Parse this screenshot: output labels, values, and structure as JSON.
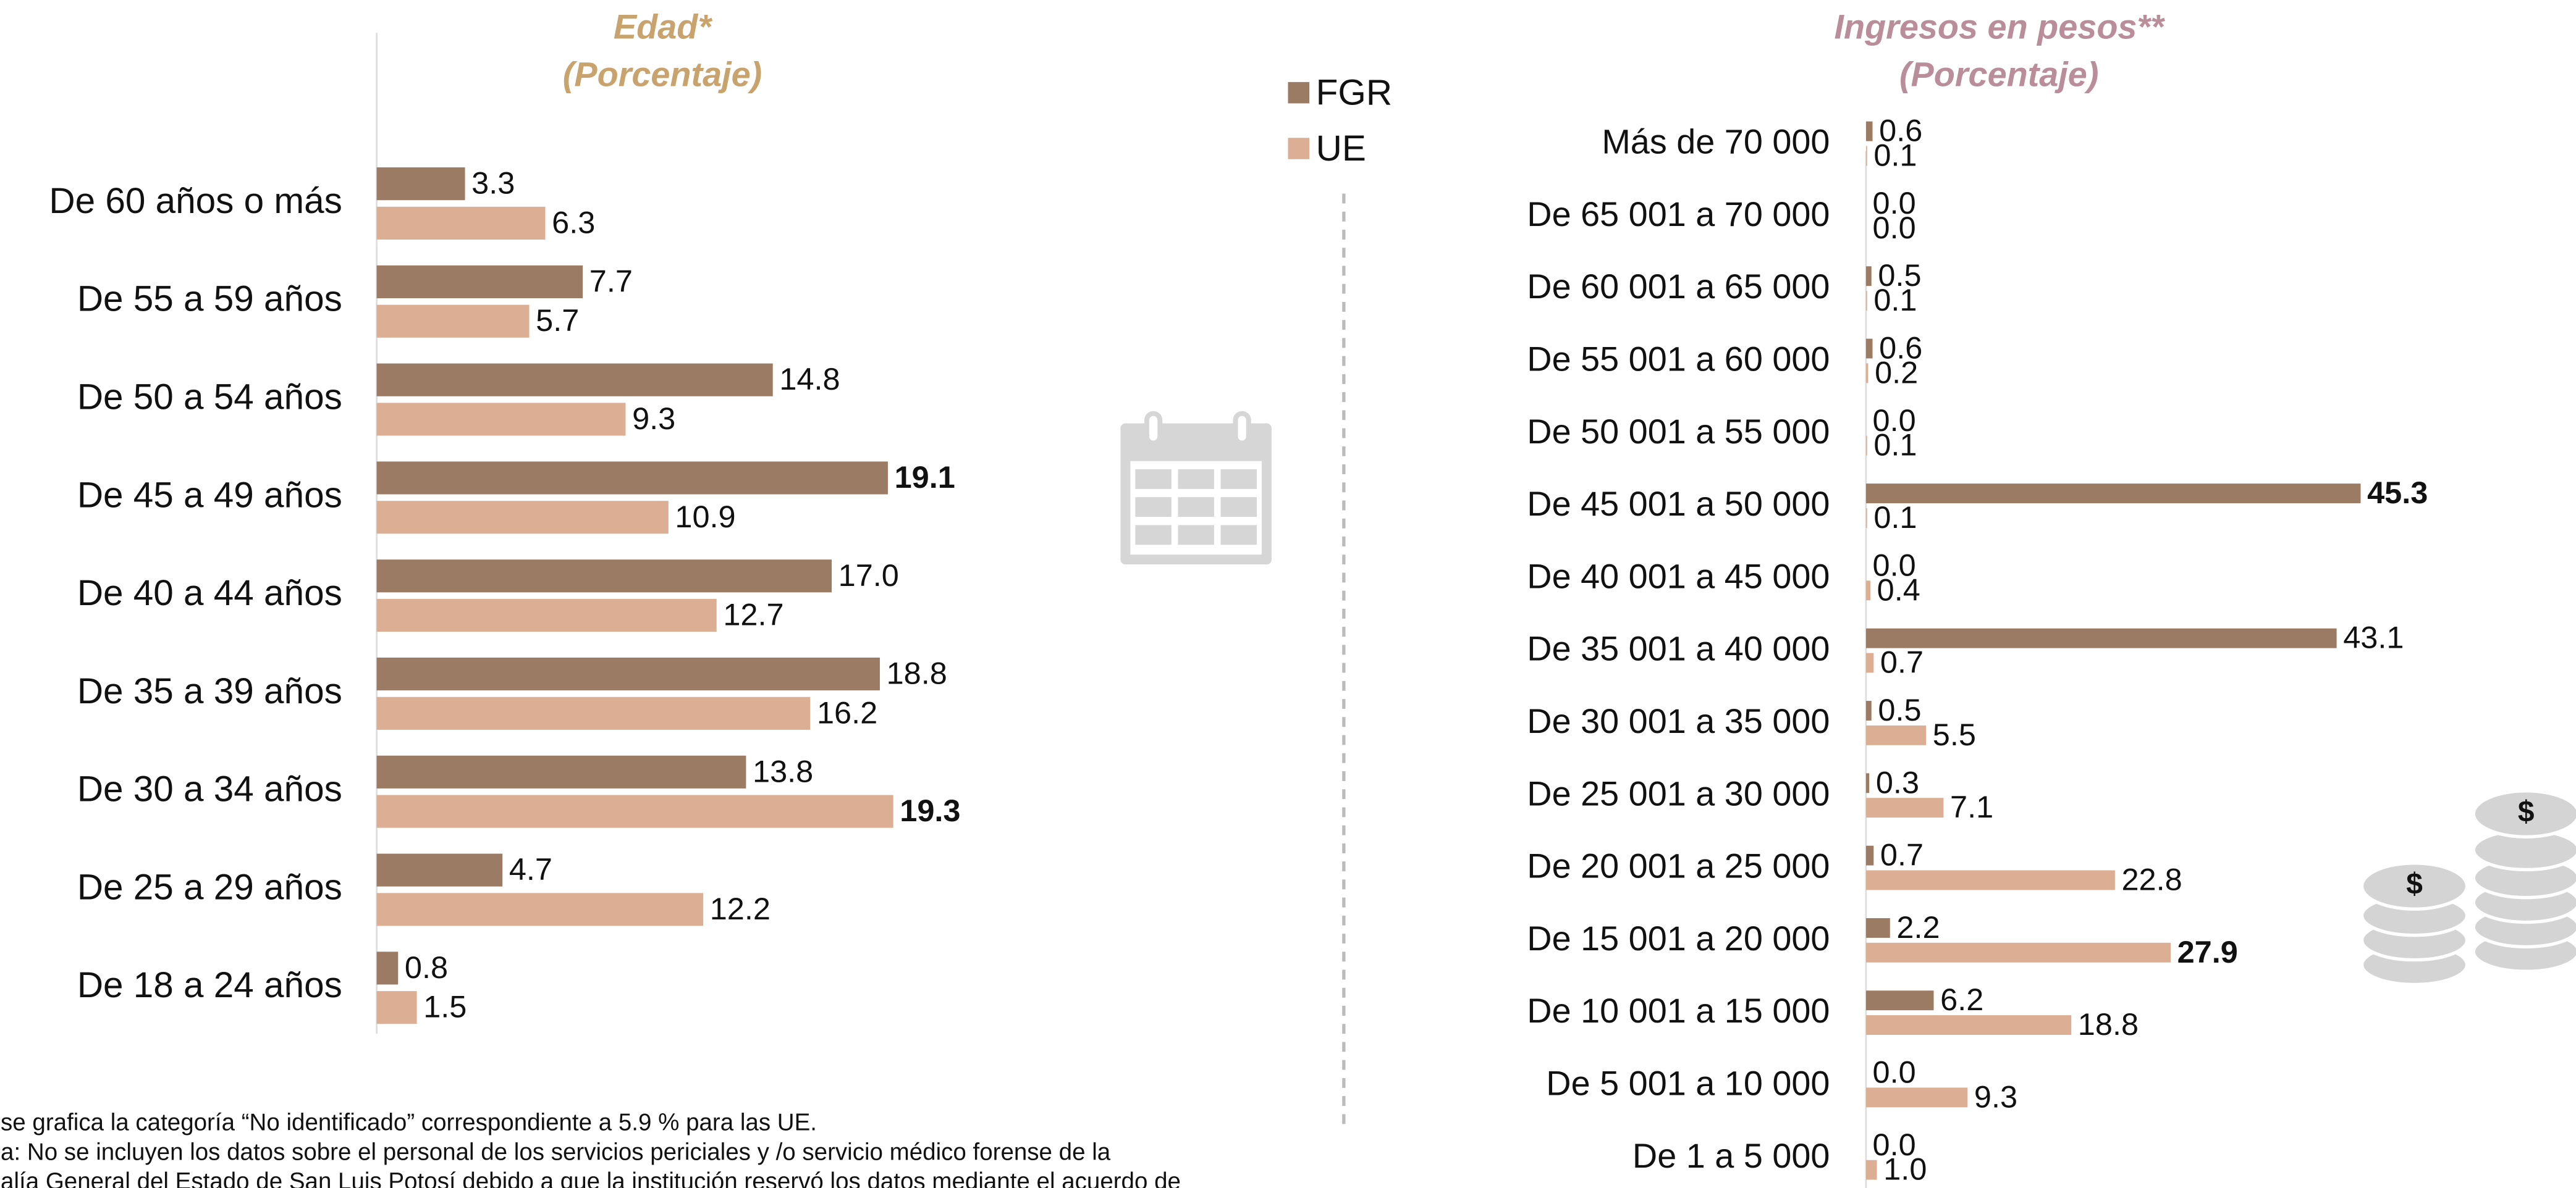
{
  "chart_data": [
    {
      "type": "bar",
      "orientation": "horizontal",
      "title": "Edad*",
      "subtitle": "(Porcentaje)",
      "title_color": "#c9a36e",
      "categories": [
        "De 60 años o más",
        "De 55 a 59 años",
        "De 50 a 54 años",
        "De 45 a 49 años",
        "De 40 a 44 años",
        "De 35 a 39 años",
        "De 30 a 34 años",
        "De 25 a 29 años",
        "De 18 a 24 años"
      ],
      "series": [
        {
          "name": "FGR",
          "color": "#9c7b64",
          "values": [
            3.3,
            7.7,
            14.8,
            19.1,
            17.0,
            18.8,
            13.8,
            4.7,
            0.8
          ],
          "value_labels": [
            "3.3",
            "7.7",
            "14.8",
            "19.1",
            "17.0",
            "18.8",
            "13.8",
            "4.7",
            "0.8"
          ]
        },
        {
          "name": "UE",
          "color": "#dcae93",
          "values": [
            6.3,
            5.7,
            9.3,
            10.9,
            12.7,
            16.2,
            19.3,
            12.2,
            1.5
          ],
          "value_labels": [
            "6.3",
            "5.7",
            "9.3",
            "10.9",
            "12.7",
            "16.2",
            "19.3",
            "12.2",
            "1.5"
          ]
        }
      ]
    },
    {
      "type": "bar",
      "orientation": "horizontal",
      "title": "Ingresos en pesos**",
      "subtitle": "(Porcentaje)",
      "title_color": "#b98d99",
      "categories": [
        "Más de 70 000",
        "De 65 001 a 70 000",
        "De 60 001 a 65 000",
        "De 55 001 a 60 000",
        "De 50 001 a 55 000",
        "De 45 001 a 50 000",
        "De 40 001 a 45 000",
        "De 35 001 a 40 000",
        "De 30 001 a 35 000",
        "De 25 001 a 30 000",
        "De 20 001 a 25 000",
        "De 15 001 a 20 000",
        "De 10 001 a 15 000",
        "De 5 001 a 10 000",
        "De 1 a 5 000"
      ],
      "series": [
        {
          "color": "#9c7b64",
          "values": [
            0.6,
            0.0,
            0.5,
            0.6,
            0.0,
            45.3,
            0.0,
            43.1,
            0.5,
            0.3,
            0.7,
            2.2,
            6.2,
            0.0,
            0.0
          ],
          "value_labels": [
            "0.6",
            "0.0",
            "0.5",
            "0.6",
            "0.0",
            "45.3",
            "0.0",
            "43.1",
            "0.5",
            "0.3",
            "0.7",
            "2.2",
            "6.2",
            "0.0",
            "0.0"
          ]
        },
        {
          "color": "#dcae93",
          "values": [
            0.1,
            0.0,
            0.1,
            0.2,
            0.1,
            0.1,
            0.4,
            0.7,
            5.5,
            7.1,
            22.8,
            27.9,
            18.8,
            9.3,
            1.0
          ],
          "value_labels": [
            "0.1",
            "0.0",
            "0.1",
            "0.2",
            "0.1",
            "0.1",
            "0.4",
            "0.7",
            "5.5",
            "7.1",
            "22.8",
            "27.9",
            "18.8",
            "9.3",
            "1.0"
          ]
        }
      ]
    }
  ],
  "notes": [
    "se grafica la categoría “No identificado” correspondiente a 5.9 % para las UE.",
    "a: No se incluyen los datos sobre el personal de los servicios periciales y /o servicio médico forense de la",
    "alía General del Estado de San Luis Potosí debido a que la institución reservó los datos mediante el acuerdo de"
  ]
}
